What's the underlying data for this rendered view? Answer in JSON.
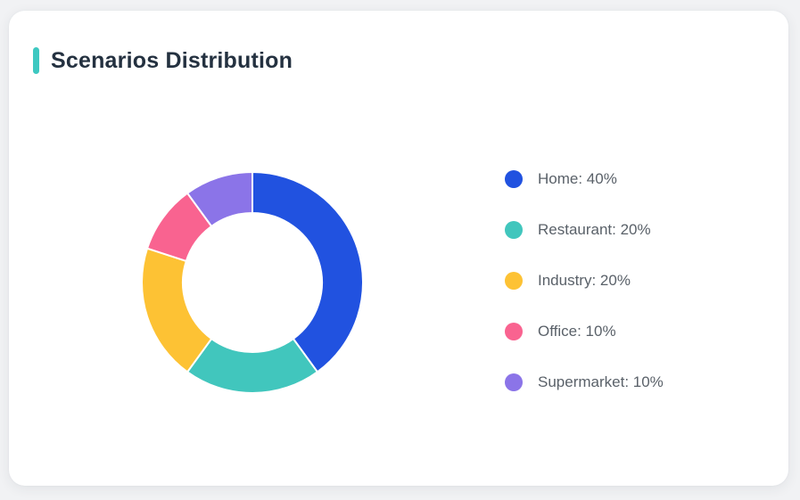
{
  "page": {
    "background": "#f1f2f4"
  },
  "card": {
    "background": "#ffffff"
  },
  "header": {
    "title": "Scenarios Distribution",
    "accent_color": "#3ec8c1"
  },
  "chart_data": {
    "type": "pie",
    "subtype": "donut",
    "title": "Scenarios Distribution",
    "categories": [
      "Home",
      "Restaurant",
      "Industry",
      "Office",
      "Supermarket"
    ],
    "values": [
      40,
      20,
      20,
      10,
      10
    ],
    "unit": "%",
    "colors": [
      "#2152e0",
      "#41c6bd",
      "#fdc234",
      "#f96390",
      "#8b74e8"
    ],
    "legend_labels": [
      "Home: 40%",
      "Restaurant: 20%",
      "Industry: 20%",
      "Office: 10%",
      "Supermarket: 10%"
    ],
    "start_angle_deg": -90,
    "direction": "clockwise",
    "inner_radius_ratio": 0.63,
    "slice_border_color": "#ffffff",
    "slice_border_width": 2,
    "legend_position": "right"
  }
}
